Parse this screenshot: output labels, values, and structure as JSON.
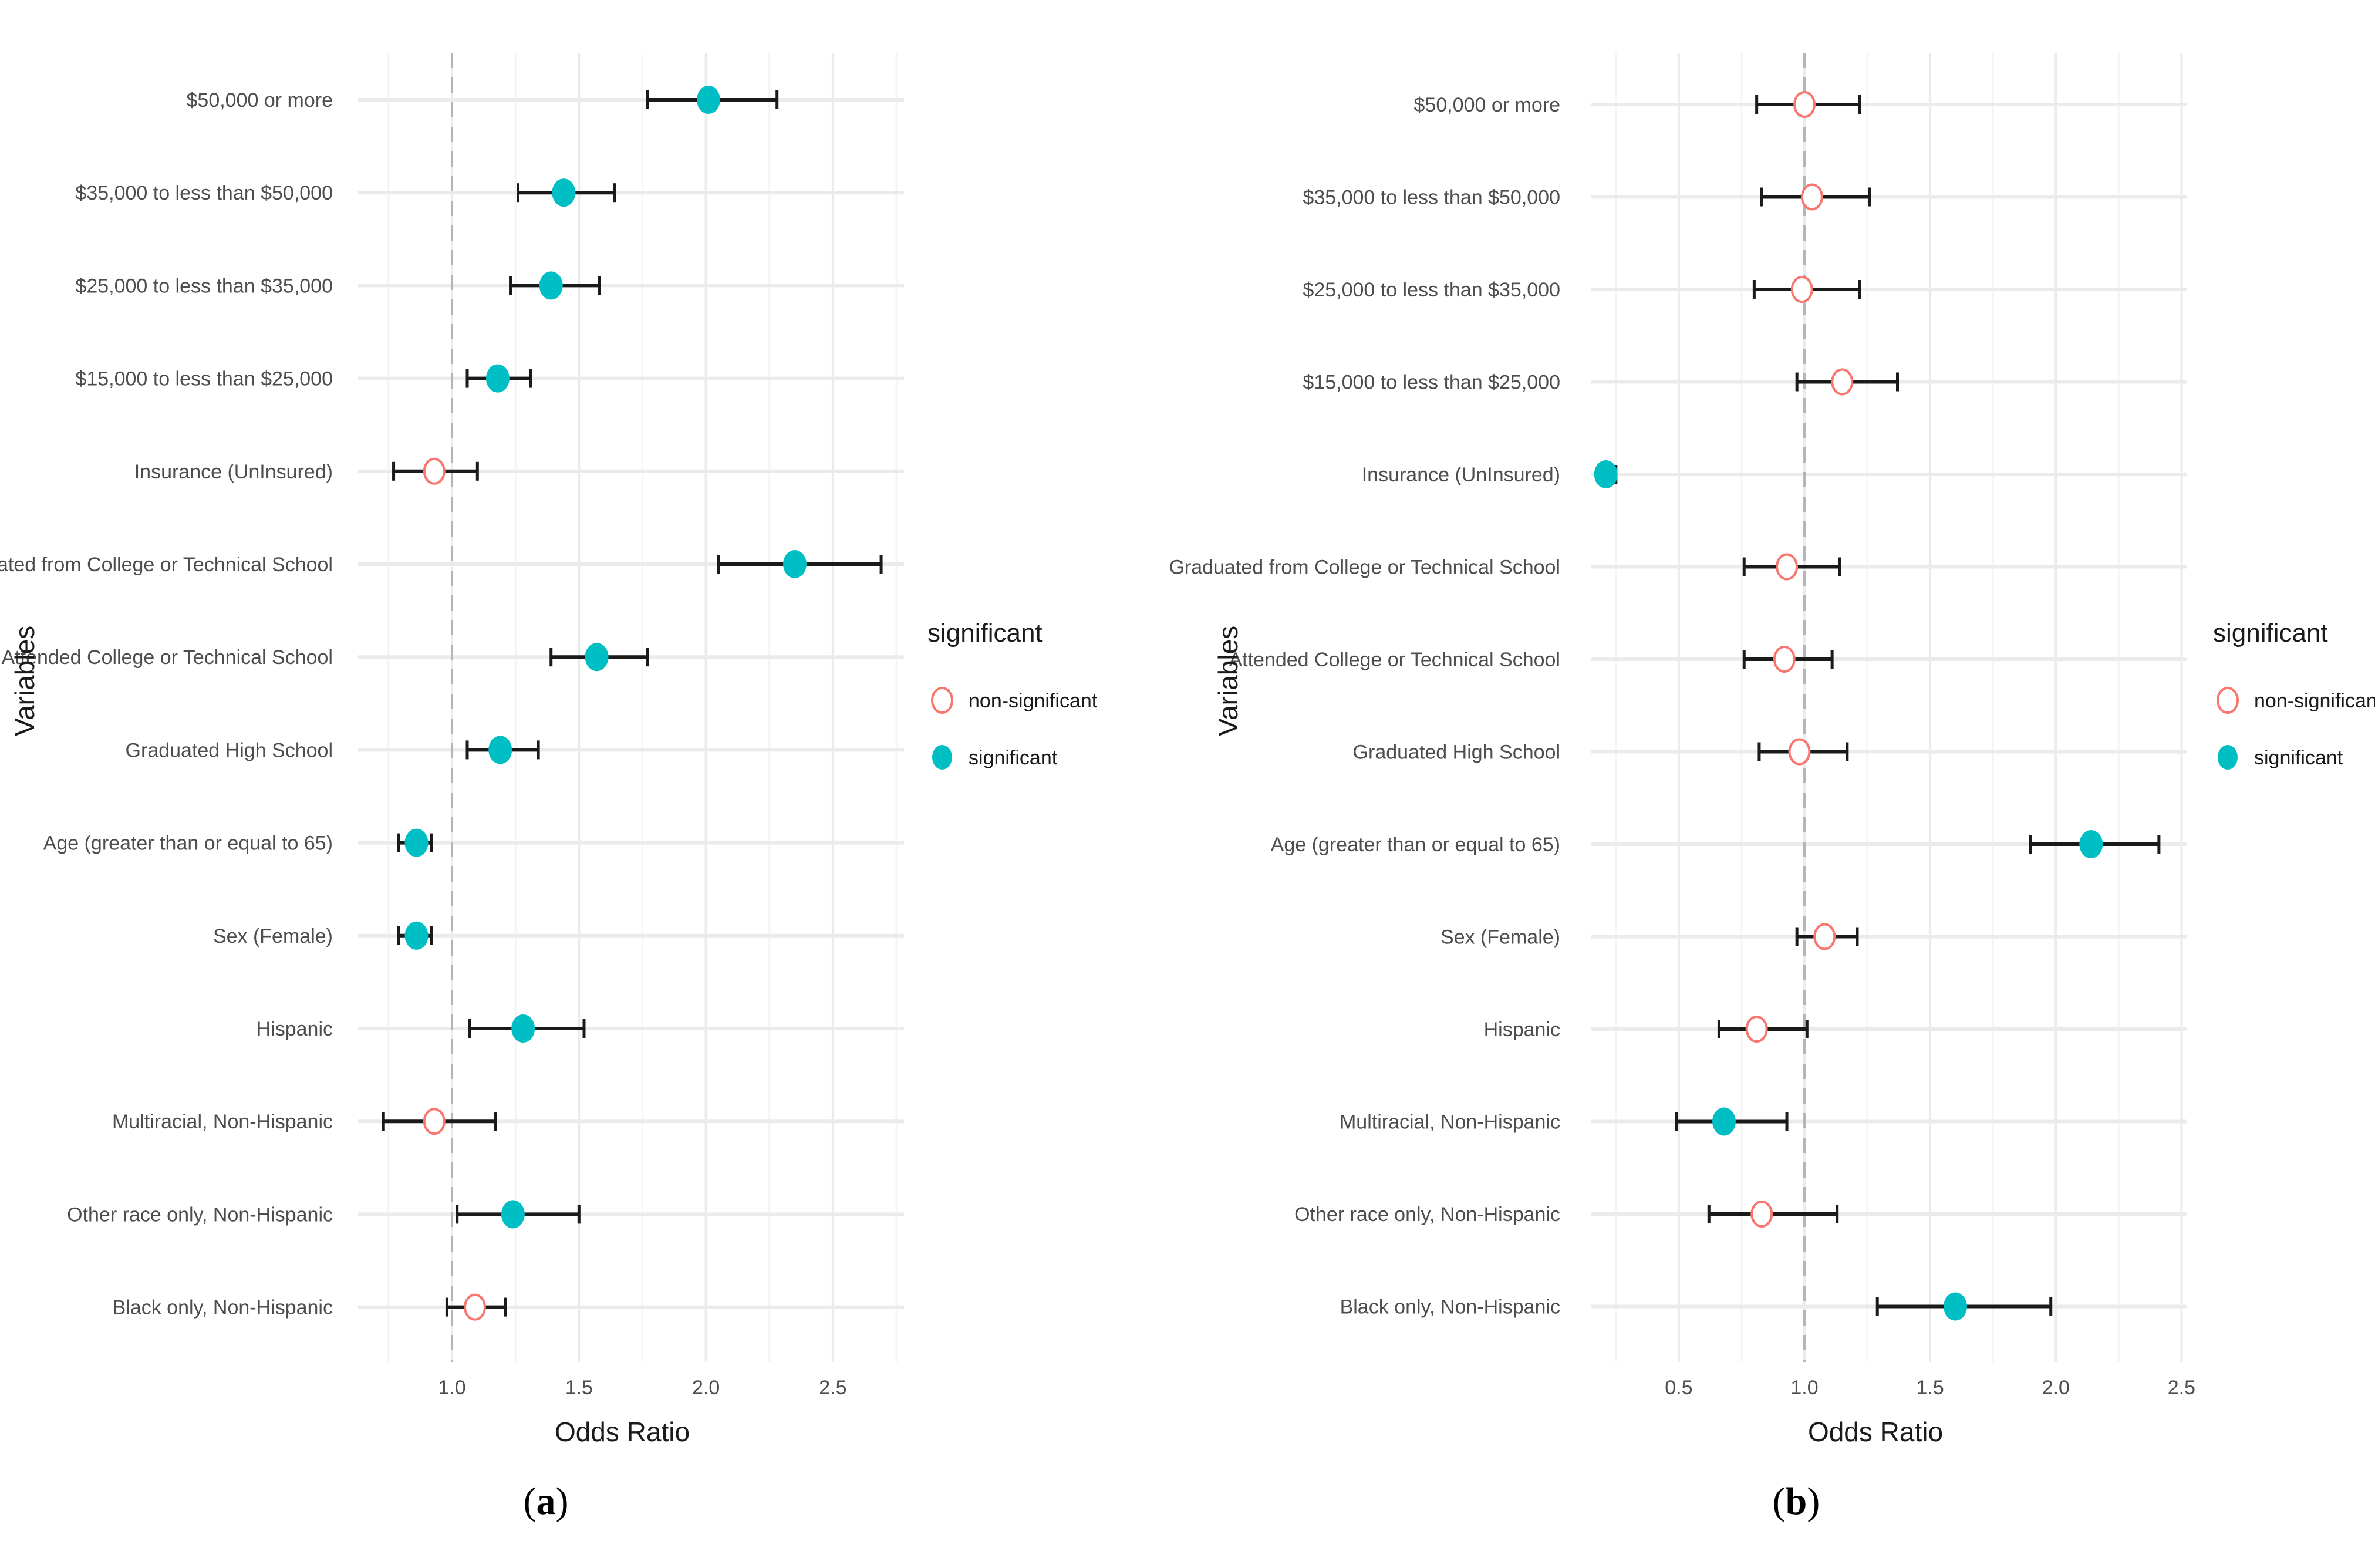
{
  "legend": {
    "title": "significant",
    "items": [
      {
        "label": "non-significant",
        "style": "hollow",
        "color": "#F8766D"
      },
      {
        "label": "significant",
        "style": "filled",
        "color": "#00BFC4"
      }
    ]
  },
  "panels": [
    {
      "open": "(",
      "letter": "a",
      "close": ")"
    },
    {
      "open": "(",
      "letter": "b",
      "close": ")"
    }
  ],
  "chart_data": [
    {
      "type": "scatter",
      "subtype": "forest-plot",
      "xlabel": "Odds Ratio",
      "ylabel": "Variables",
      "xlim": [
        0.63,
        2.78
      ],
      "xticks": [
        "1.0",
        "1.5",
        "2.0",
        "2.5"
      ],
      "xticks_values": [
        1.0,
        1.5,
        2.0,
        2.5
      ],
      "reference_line": 1.0,
      "grid": true,
      "legend_position": "right",
      "categories": [
        "$50,000 or more",
        "$35,000 to less than $50,000",
        "$25,000 to less than $35,000",
        "$15,000 to less than $25,000",
        "Insurance (UnInsured)",
        "Graduated from College or Technical School",
        "Attended College or Technical School",
        "Graduated High School",
        "Age (greater than or equal to 65)",
        "Sex (Female)",
        "Hispanic",
        "Multiracial, Non-Hispanic",
        "Other race only, Non-Hispanic",
        "Black only, Non-Hispanic"
      ],
      "odds_ratio": [
        2.01,
        1.44,
        1.39,
        1.18,
        0.93,
        2.35,
        1.57,
        1.19,
        0.86,
        0.86,
        1.28,
        0.93,
        1.24,
        1.09
      ],
      "ci_low": [
        1.77,
        1.26,
        1.23,
        1.06,
        0.77,
        2.05,
        1.39,
        1.06,
        0.79,
        0.79,
        1.07,
        0.73,
        1.02,
        0.98
      ],
      "ci_high": [
        2.28,
        1.64,
        1.58,
        1.31,
        1.1,
        2.69,
        1.77,
        1.34,
        0.92,
        0.92,
        1.52,
        1.17,
        1.5,
        1.21
      ],
      "significant": [
        true,
        true,
        true,
        true,
        false,
        true,
        true,
        true,
        true,
        true,
        true,
        false,
        true,
        false
      ]
    },
    {
      "type": "scatter",
      "subtype": "forest-plot",
      "xlabel": "Odds Ratio",
      "ylabel": "Variables",
      "xlim": [
        0.15,
        2.52
      ],
      "xticks": [
        "0.5",
        "1.0",
        "1.5",
        "2.0",
        "2.5"
      ],
      "xticks_values": [
        0.5,
        1.0,
        1.5,
        2.0,
        2.5
      ],
      "reference_line": 1.0,
      "grid": true,
      "legend_position": "right",
      "categories": [
        "$50,000 or more",
        "$35,000 to less than $50,000",
        "$25,000 to less than $35,000",
        "$15,000 to less than $25,000",
        "Insurance (UnInsured)",
        "Graduated from College or Technical School",
        "Attended College or Technical School",
        "Graduated High School",
        "Age (greater than or equal to 65)",
        "Sex (Female)",
        "Hispanic",
        "Multiracial, Non-Hispanic",
        "Other race only, Non-Hispanic",
        "Black only, Non-Hispanic"
      ],
      "odds_ratio": [
        1.0,
        1.03,
        0.99,
        1.15,
        0.21,
        0.93,
        0.92,
        0.98,
        2.14,
        1.08,
        0.81,
        0.68,
        0.83,
        1.6
      ],
      "ci_low": [
        0.81,
        0.83,
        0.8,
        0.97,
        0.18,
        0.76,
        0.76,
        0.82,
        1.9,
        0.97,
        0.66,
        0.49,
        0.62,
        1.29
      ],
      "ci_high": [
        1.22,
        1.26,
        1.22,
        1.37,
        0.25,
        1.14,
        1.11,
        1.17,
        2.41,
        1.21,
        1.01,
        0.93,
        1.13,
        1.98
      ],
      "significant": [
        false,
        false,
        false,
        false,
        true,
        false,
        false,
        false,
        true,
        false,
        false,
        true,
        false,
        true
      ]
    }
  ]
}
